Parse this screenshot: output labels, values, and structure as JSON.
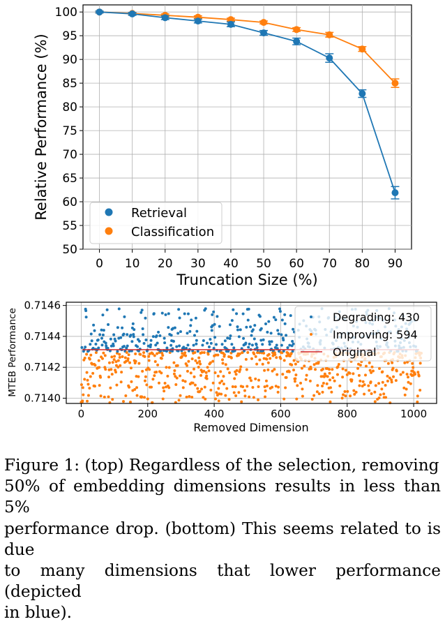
{
  "chart_data": [
    {
      "type": "line",
      "xlabel": "Truncation Size (%)",
      "ylabel": "Relative Performance (%)",
      "xlim": [
        -5,
        95
      ],
      "ylim": [
        50,
        101.5
      ],
      "x": [
        0,
        10,
        20,
        30,
        40,
        50,
        60,
        70,
        80,
        90
      ],
      "x_ticks": [
        "0",
        "10",
        "20",
        "30",
        "40",
        "50",
        "60",
        "70",
        "80",
        "90"
      ],
      "y_ticks": [
        "50",
        "55",
        "60",
        "65",
        "70",
        "75",
        "80",
        "85",
        "90",
        "95",
        "100"
      ],
      "grid": true,
      "legend_position": "lower-left",
      "series": [
        {
          "name": "Retrieval",
          "color": "#1f77b4",
          "values": [
            100,
            99.6,
            98.8,
            98.1,
            97.4,
            95.6,
            93.8,
            90.3,
            82.8,
            61.9
          ],
          "errors": [
            0.2,
            0.3,
            0.4,
            0.4,
            0.5,
            0.5,
            0.7,
            0.9,
            0.8,
            1.3
          ]
        },
        {
          "name": "Classification",
          "color": "#ff7f0e",
          "values": [
            100,
            99.7,
            99.3,
            98.9,
            98.4,
            97.8,
            96.3,
            95.2,
            92.2,
            85.0
          ],
          "errors": [
            0.2,
            0.2,
            0.3,
            0.3,
            0.3,
            0.3,
            0.4,
            0.5,
            0.5,
            0.9
          ]
        }
      ]
    },
    {
      "type": "scatter",
      "xlabel": "Removed Dimension",
      "ylabel": "MTEB Performance",
      "xlim": [
        -45,
        1069
      ],
      "ylim": [
        0.713966,
        0.714621
      ],
      "x_ticks": [
        "0",
        "200",
        "400",
        "600",
        "800",
        "1000"
      ],
      "y_ticks": [
        "0.7140",
        "0.7142",
        "0.7144",
        "0.7146"
      ],
      "original_value": 0.7143,
      "legend_position": "top-right",
      "series": [
        {
          "name": "Degrading: 430",
          "color": "#1f77b4",
          "count": 430,
          "points_note": "one point per removed dimension 0-1023 scoring above the original",
          "range": [
            0.7143,
            0.71458
          ]
        },
        {
          "name": "Improving: 594",
          "color": "#ff7f0e",
          "count": 594,
          "points_note": "one point per removed dimension 0-1023 scoring below the original",
          "range": [
            0.71397,
            0.7143
          ]
        },
        {
          "name": "Original",
          "color": "#d62728",
          "kind": "line"
        }
      ]
    }
  ],
  "caption": [
    "Figure 1: (top) Regardless of the selection, removing",
    "50% of embedding dimensions results in less than 5%",
    "performance drop. (bottom) This seems related to is due",
    "to many dimensions that lower performance (depicted",
    "in blue)."
  ]
}
